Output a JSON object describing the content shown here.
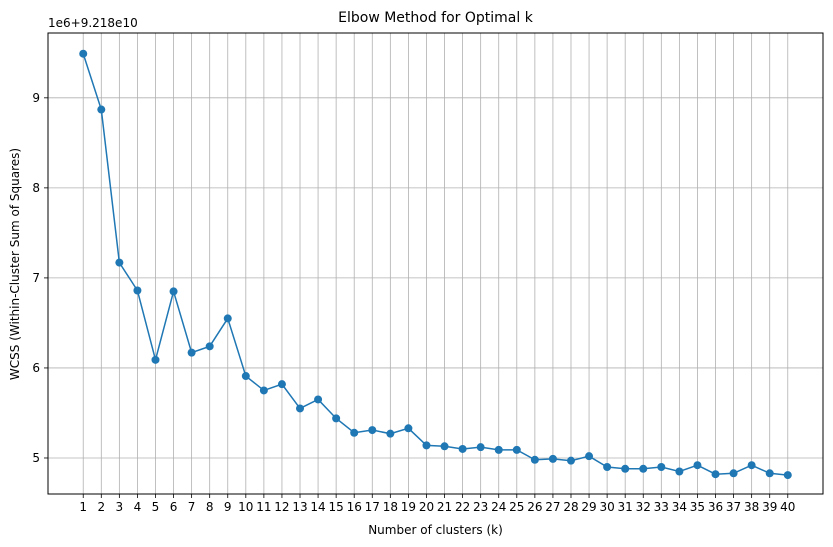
{
  "chart_data": {
    "type": "line",
    "title": "Elbow Method for Optimal k",
    "xlabel": "Number of clusters (k)",
    "ylabel": "WCSS (Within-Cluster Sum of Squares)",
    "offset_label": "1e6+9.218e10",
    "grid": true,
    "xlim": [
      -0.95,
      41.95
    ],
    "ylim": [
      4.6,
      9.72
    ],
    "yticks": [
      5,
      6,
      7,
      8,
      9
    ],
    "x": [
      1,
      2,
      3,
      4,
      5,
      6,
      7,
      8,
      9,
      10,
      11,
      12,
      13,
      14,
      15,
      16,
      17,
      18,
      19,
      20,
      21,
      22,
      23,
      24,
      25,
      26,
      27,
      28,
      29,
      30,
      31,
      32,
      33,
      34,
      35,
      36,
      37,
      38,
      39,
      40
    ],
    "series": [
      {
        "color": "#1f77b4",
        "values": [
          9.49,
          8.87,
          7.17,
          6.86,
          6.09,
          6.85,
          6.17,
          6.24,
          6.55,
          5.91,
          5.75,
          5.82,
          5.55,
          5.65,
          5.44,
          5.28,
          5.31,
          5.27,
          5.33,
          5.14,
          5.13,
          5.1,
          5.12,
          5.09,
          5.09,
          4.98,
          4.99,
          4.97,
          5.02,
          4.9,
          4.88,
          4.88,
          4.9,
          4.85,
          4.92,
          4.82,
          4.83,
          4.92,
          4.83,
          4.81
        ]
      }
    ]
  }
}
